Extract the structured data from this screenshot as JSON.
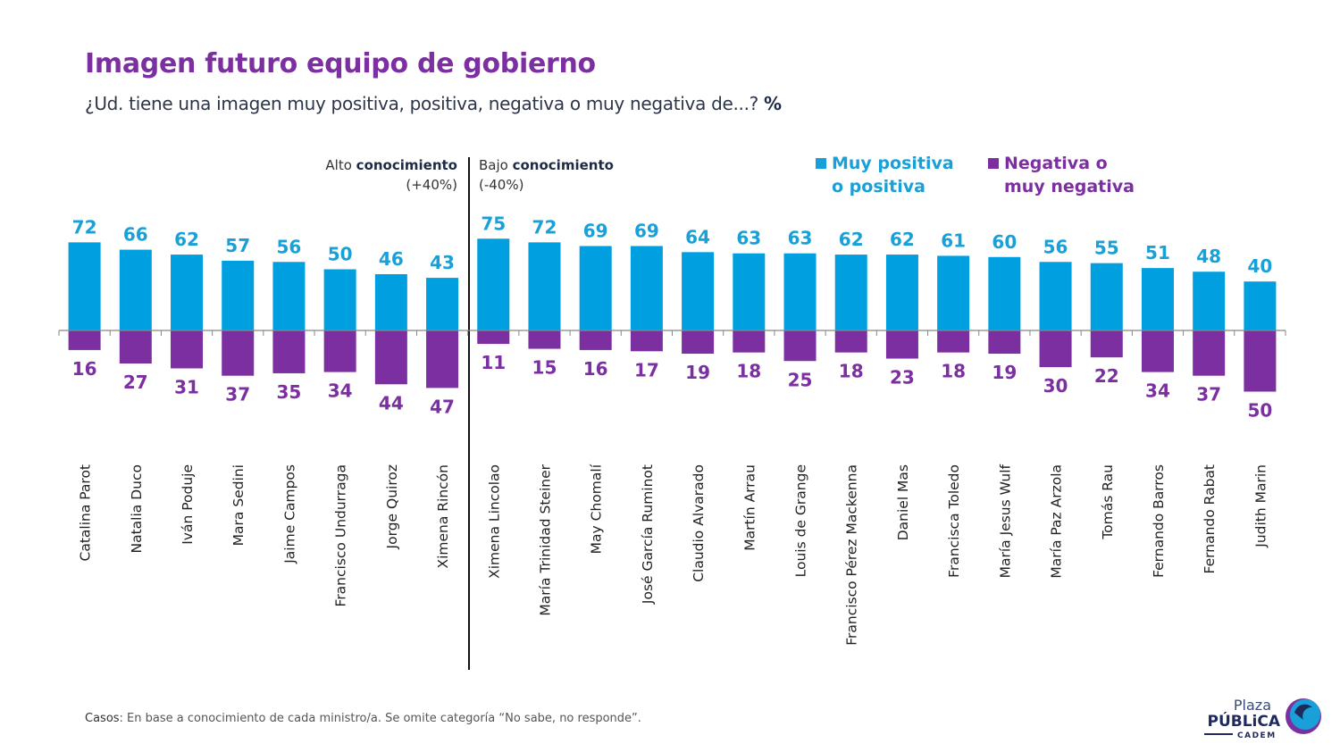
{
  "header": {
    "title": "Imagen futuro equipo de gobierno",
    "subtitle": "¿Ud. tiene una imagen muy positiva, positiva, negativa o muy negativa de...?",
    "subtitle_unit": "%"
  },
  "groups": {
    "high": {
      "prefix": "Alto",
      "bold": "conocimiento",
      "range": "(+40%)"
    },
    "low": {
      "prefix": "Bajo",
      "bold": "conocimiento",
      "range": "(-40%)"
    }
  },
  "legend": [
    {
      "line1": "Muy positiva",
      "line2": "o positiva",
      "color": "#009fdf"
    },
    {
      "line1": "Negativa o",
      "line2": "muy negativa",
      "color": "#7b2fa0"
    }
  ],
  "footnote": {
    "label": "Casos",
    "text": ": En base a conocimiento de cada ministro/a. Se omite categoría “No sabe, no responde”."
  },
  "logo": {
    "line1": "Plaza",
    "line2": "PÚBLiCA",
    "line3": "CADEM"
  },
  "chart_data": {
    "type": "bar",
    "title": "Imagen futuro equipo de gobierno",
    "xlabel": "",
    "ylabel": "%",
    "ylim": [
      -55,
      80
    ],
    "grid": false,
    "legend_position": "top-right",
    "groups": [
      {
        "name": "Alto conocimiento (+40%)",
        "start": 0,
        "end": 7
      },
      {
        "name": "Bajo conocimiento (-40%)",
        "start": 8,
        "end": 23
      }
    ],
    "categories": [
      "Catalina Parot",
      "Natalia Duco",
      "Iván Poduje",
      "Mara Sedini",
      "Jaime Campos",
      "Francisco Undurraga",
      "Jorge Quiroz",
      "Ximena Rincón",
      "Ximena Lincolao",
      "María Trinidad Steiner",
      "May Chomalí",
      "José García Ruminot",
      "Claudio Alvarado",
      "Martín Arrau",
      "Louis de Grange",
      "Francisco Pérez Mackenna",
      "Daniel Mas",
      "Francisca Toledo",
      "María Jesus Wulf",
      "María Paz Arzola",
      "Tomás Rau",
      "Fernando Barros",
      "Fernando Rabat",
      "Judith Marin"
    ],
    "series": [
      {
        "name": "Muy positiva o positiva",
        "color": "#009fdf",
        "values": [
          72,
          66,
          62,
          57,
          56,
          50,
          46,
          43,
          75,
          72,
          69,
          69,
          64,
          63,
          63,
          62,
          62,
          61,
          60,
          56,
          55,
          51,
          48,
          40
        ]
      },
      {
        "name": "Negativa o muy negativa",
        "color": "#7b2fa0",
        "values": [
          16,
          27,
          31,
          37,
          35,
          34,
          44,
          47,
          11,
          15,
          16,
          17,
          19,
          18,
          25,
          18,
          23,
          18,
          19,
          30,
          22,
          34,
          37,
          50
        ]
      }
    ]
  }
}
